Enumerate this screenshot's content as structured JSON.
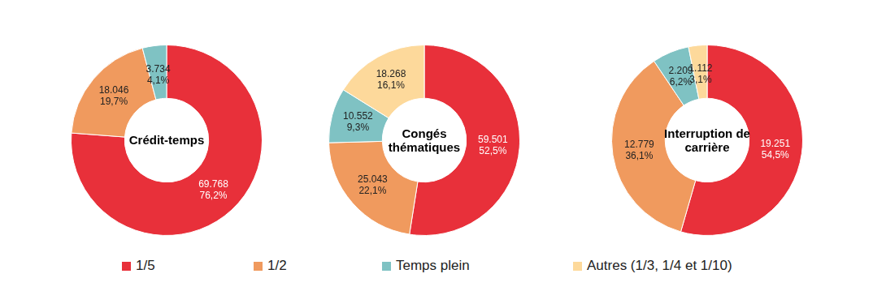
{
  "chart_data": [
    {
      "type": "doughnut",
      "title": "Crédit-temps",
      "categories": [
        "1/5",
        "1/2",
        "Temps plein"
      ],
      "values": [
        69768,
        18046,
        3734
      ],
      "value_labels": [
        "69.768",
        "18.046",
        "3.734"
      ],
      "percentages": [
        76.2,
        19.7,
        4.1
      ],
      "percentage_labels": [
        "76,2%",
        "19,7%",
        "4,1%"
      ],
      "colors": [
        "#e8303a",
        "#f09a5e",
        "#7fc2c3"
      ],
      "data_labels": true,
      "legend": "bottom"
    },
    {
      "type": "doughnut",
      "title": "Congés thématiques",
      "categories": [
        "1/5",
        "1/2",
        "Temps plein",
        "Autres (1/3, 1/4 et 1/10)"
      ],
      "values": [
        59501,
        25043,
        10552,
        18268
      ],
      "value_labels": [
        "59.501",
        "25.043",
        "10.552",
        "18.268"
      ],
      "percentages": [
        52.5,
        22.1,
        9.3,
        16.1
      ],
      "percentage_labels": [
        "52,5%",
        "22,1%",
        "9,3%",
        "16,1%"
      ],
      "colors": [
        "#e8303a",
        "#f09a5e",
        "#7fc2c3",
        "#fdd99b"
      ],
      "data_labels": true,
      "legend": "bottom"
    },
    {
      "type": "doughnut",
      "title": "Interruption de carrière",
      "categories": [
        "1/5",
        "1/2",
        "Temps plein",
        "Autres (1/3, 1/4 et 1/10)"
      ],
      "values": [
        19251,
        12779,
        2209,
        1112
      ],
      "value_labels": [
        "19.251",
        "12.779",
        "2.209",
        "1.112"
      ],
      "percentages": [
        54.5,
        36.1,
        6.2,
        3.1
      ],
      "percentage_labels": [
        "54,5%",
        "36,1%",
        "6,2%",
        "3,1%"
      ],
      "colors": [
        "#e8303a",
        "#f09a5e",
        "#7fc2c3",
        "#fdd99b"
      ],
      "data_labels": true,
      "legend": "bottom"
    }
  ]
}
